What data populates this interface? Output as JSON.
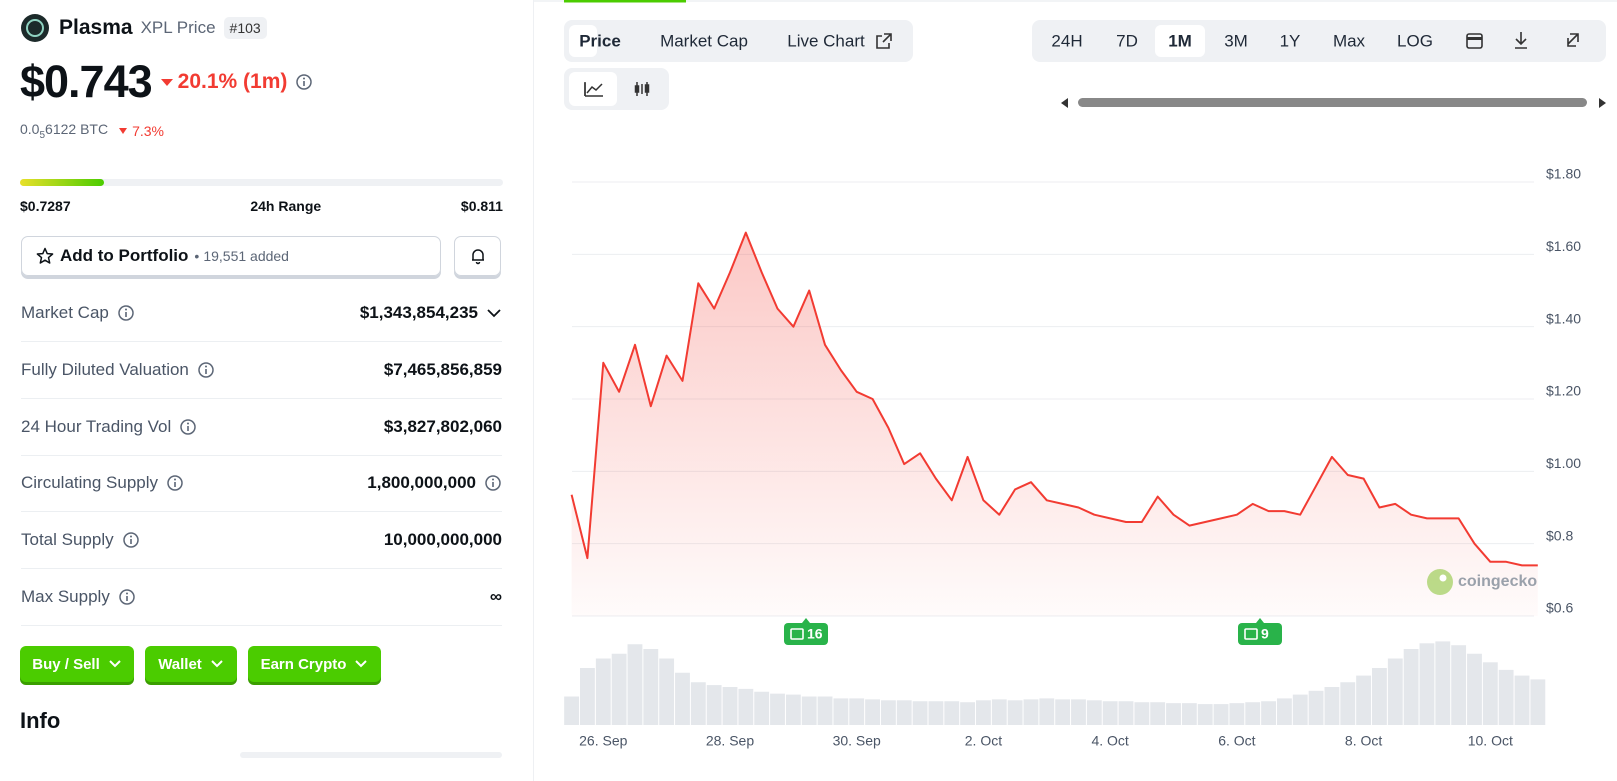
{
  "coin": {
    "name": "Plasma",
    "symbol": "XPL Price",
    "rank": "#103"
  },
  "price": {
    "value": "$0.743",
    "change": "20.1% (1m)",
    "btc_prefix": "0.0",
    "btc_sub": "5",
    "btc_rest": "6122 BTC",
    "btc_change": "7.3%"
  },
  "range": {
    "low": {
      "value": 0.7287,
      "label": "$0.7287"
    },
    "label": "24h Range",
    "high": {
      "value": 0.811,
      "label": "$0.811"
    },
    "current": 0.743
  },
  "portfolio": {
    "button": "Add to Portfolio",
    "added": "19,551 added"
  },
  "stats": [
    {
      "label": "Market Cap",
      "value": "$1,343,854,235"
    },
    {
      "label": "Fully Diluted Valuation",
      "value": "$7,465,856,859"
    },
    {
      "label": "24 Hour Trading Vol",
      "value": "$3,827,802,060"
    },
    {
      "label": "Circulating Supply",
      "value": "1,800,000,000"
    },
    {
      "label": "Total Supply",
      "value": "10,000,000,000"
    },
    {
      "label": "Max Supply",
      "value": "∞"
    }
  ],
  "actions": [
    "Buy / Sell",
    "Wallet",
    "Earn Crypto"
  ],
  "info_heading": "Info",
  "chart_tabs": [
    "Price",
    "Market Cap",
    "Live Chart"
  ],
  "active_tab": 0,
  "ranges": [
    "24H",
    "7D",
    "1M",
    "3M",
    "1Y",
    "Max",
    "LOG"
  ],
  "active_range": 2,
  "chart_data": {
    "type": "line",
    "categories": [
      null,
      null,
      "26. Sep",
      null,
      null,
      null,
      null,
      null,
      null,
      null,
      "28. Sep",
      null,
      null,
      null,
      null,
      null,
      null,
      null,
      "30. Sep",
      null,
      null,
      null,
      null,
      null,
      null,
      null,
      "2. Oct",
      null,
      null,
      null,
      null,
      null,
      null,
      null,
      "4. Oct",
      null,
      null,
      null,
      null,
      null,
      null,
      null,
      "6. Oct",
      null,
      null,
      null,
      null,
      null,
      null,
      null,
      "8. Oct",
      null,
      null,
      null,
      null,
      null,
      null,
      null,
      "10. Oct",
      null,
      null,
      null
    ],
    "values": [
      0.935,
      0.76,
      1.3,
      1.22,
      1.35,
      1.18,
      1.32,
      1.25,
      1.52,
      1.45,
      1.55,
      1.66,
      1.55,
      1.45,
      1.4,
      1.5,
      1.35,
      1.28,
      1.22,
      1.2,
      1.12,
      1.02,
      1.05,
      0.98,
      0.92,
      1.04,
      0.92,
      0.88,
      0.95,
      0.97,
      0.92,
      0.91,
      0.9,
      0.88,
      0.87,
      0.86,
      0.86,
      0.93,
      0.88,
      0.85,
      0.86,
      0.87,
      0.88,
      0.91,
      0.89,
      0.89,
      0.88,
      0.96,
      1.04,
      0.99,
      0.98,
      0.9,
      0.91,
      0.88,
      0.87,
      0.87,
      0.87,
      0.8,
      0.75,
      0.75,
      0.74,
      0.74
    ],
    "color": "#f23b32",
    "ylim": [
      0.6,
      1.8
    ],
    "yticks": [
      {
        "value": 0.6,
        "label": "$0.6"
      },
      {
        "value": 0.8,
        "label": "$0.8"
      },
      {
        "value": 1.0,
        "label": "$1.00"
      },
      {
        "value": 1.2,
        "label": "$1.20"
      },
      {
        "value": 1.4,
        "label": "$1.40"
      },
      {
        "value": 1.6,
        "label": "$1.60"
      },
      {
        "value": 1.8,
        "label": "$1.80"
      }
    ],
    "grid": true,
    "annotations": [
      "16",
      "9"
    ],
    "watermark": "coingecko"
  },
  "volume": {
    "values": [
      30,
      60,
      70,
      75,
      85,
      80,
      70,
      55,
      45,
      42,
      40,
      38,
      35,
      33,
      32,
      30,
      30,
      28,
      28,
      27,
      26,
      26,
      25,
      25,
      25,
      24,
      26,
      27,
      26,
      27,
      28,
      27,
      27,
      26,
      25,
      25,
      24,
      24,
      23,
      23,
      22,
      22,
      23,
      24,
      25,
      28,
      32,
      36,
      40,
      45,
      52,
      60,
      70,
      80,
      86,
      88,
      84,
      75,
      66,
      58,
      52,
      48
    ],
    "ylim": [
      0,
      100
    ],
    "color": "#e4e7eb"
  }
}
